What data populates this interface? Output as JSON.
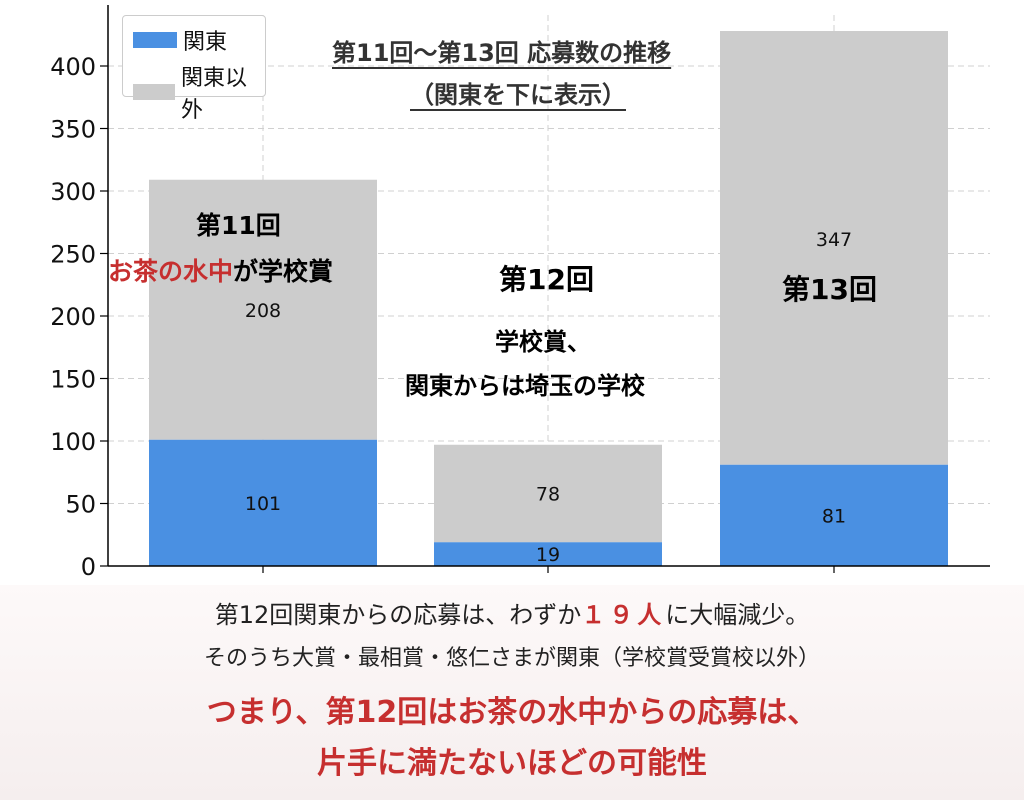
{
  "chart_data": {
    "type": "bar",
    "stacked": true,
    "categories": [
      "",
      "",
      ""
    ],
    "series": [
      {
        "name": "関東",
        "values": [
          101,
          19,
          81
        ],
        "color": "#4a90e2"
      },
      {
        "name": "関東以外",
        "values": [
          208,
          78,
          347
        ],
        "color": "#cccccc"
      }
    ],
    "title_lines": [
      "第11回〜第13回 応募数の推移",
      "（関東を下に表示）"
    ],
    "xlabel": "",
    "ylabel": "",
    "ylim": [
      0,
      430
    ],
    "yticks": [
      "0",
      "50",
      "100",
      "150",
      "200",
      "250",
      "300",
      "350",
      "400"
    ],
    "grid": true,
    "legend_position": "top-left",
    "segment_labels": [
      {
        "bottom": "101",
        "top": "208"
      },
      {
        "bottom": "19",
        "top": "78"
      },
      {
        "bottom": "81",
        "top": "347"
      }
    ]
  },
  "annotations": {
    "bar1_heading": "第11回",
    "bar1_highlight": "お茶の水中",
    "bar1_rest": "が学校賞",
    "bar2_heading": "第12回",
    "bar2_line1": "学校賞、",
    "bar2_line2": "関東からは埼玉の学校",
    "bar3_heading": "第13回"
  },
  "caption": {
    "line1_a": "第12回関東からの応募は、わずか",
    "line1_highlight": "１９人",
    "line1_b": "に大幅減少。",
    "line2": "そのうち大賞・最相賞・悠仁さまが関東（学校賞受賞校以外）",
    "line3": "つまり、第12回はお茶の水中からの応募は、",
    "line4": "片手に満たないほどの可能性"
  },
  "colors": {
    "kanto": "#4a90e2",
    "other": "#cccccc",
    "accent_red": "#c62f2f"
  }
}
